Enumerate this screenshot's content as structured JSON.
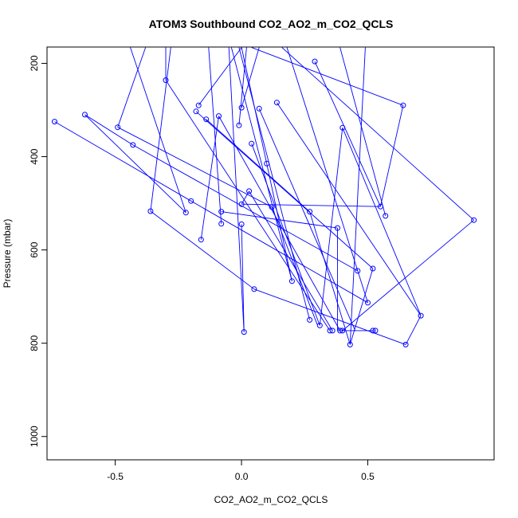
{
  "chart_data": {
    "type": "line",
    "title": "ATOM3 Southbound CO2_AO2_m_CO2_QCLS",
    "xlabel": "CO2_AO2_m_CO2_QCLS",
    "ylabel": "Pressure (mbar)",
    "xlim": [
      -0.77,
      1.0
    ],
    "ylim": [
      1050,
      165
    ],
    "y_reversed": true,
    "x_ticks": [
      -0.5,
      0.0,
      0.5
    ],
    "x_tick_labels": [
      "-0.5",
      "0.0",
      "0.5"
    ],
    "y_ticks": [
      200,
      400,
      600,
      800,
      1000
    ],
    "y_tick_labels": [
      "200",
      "400",
      "600",
      "800",
      "1000"
    ],
    "series_color": "#0000ff",
    "marker": "open-circle",
    "visible_markers": [
      {
        "x": -0.74,
        "y": 325
      },
      {
        "x": -0.62,
        "y": 310
      },
      {
        "x": -0.49,
        "y": 337
      },
      {
        "x": -0.43,
        "y": 375
      },
      {
        "x": -0.36,
        "y": 517
      },
      {
        "x": -0.3,
        "y": 236
      },
      {
        "x": -0.22,
        "y": 520
      },
      {
        "x": -0.2,
        "y": 495
      },
      {
        "x": -0.18,
        "y": 303
      },
      {
        "x": -0.17,
        "y": 290
      },
      {
        "x": -0.16,
        "y": 578
      },
      {
        "x": -0.14,
        "y": 320
      },
      {
        "x": -0.09,
        "y": 313
      },
      {
        "x": -0.08,
        "y": 544
      },
      {
        "x": -0.08,
        "y": 518
      },
      {
        "x": -0.01,
        "y": 333
      },
      {
        "x": 0.0,
        "y": 295
      },
      {
        "x": 0.0,
        "y": 545
      },
      {
        "x": 0.0,
        "y": 502
      },
      {
        "x": 0.01,
        "y": 776
      },
      {
        "x": 0.03,
        "y": 474
      },
      {
        "x": 0.04,
        "y": 372
      },
      {
        "x": 0.05,
        "y": 684
      },
      {
        "x": 0.07,
        "y": 297
      },
      {
        "x": 0.1,
        "y": 415
      },
      {
        "x": 0.12,
        "y": 508
      },
      {
        "x": 0.14,
        "y": 284
      },
      {
        "x": 0.2,
        "y": 667
      },
      {
        "x": 0.27,
        "y": 750
      },
      {
        "x": 0.27,
        "y": 518
      },
      {
        "x": 0.29,
        "y": 196
      },
      {
        "x": 0.31,
        "y": 762
      },
      {
        "x": 0.35,
        "y": 773
      },
      {
        "x": 0.36,
        "y": 773
      },
      {
        "x": 0.38,
        "y": 553
      },
      {
        "x": 0.39,
        "y": 773
      },
      {
        "x": 0.4,
        "y": 773
      },
      {
        "x": 0.4,
        "y": 338
      },
      {
        "x": 0.43,
        "y": 803
      },
      {
        "x": 0.46,
        "y": 645
      },
      {
        "x": 0.5,
        "y": 713
      },
      {
        "x": 0.52,
        "y": 773
      },
      {
        "x": 0.53,
        "y": 773
      },
      {
        "x": 0.52,
        "y": 640
      },
      {
        "x": 0.55,
        "y": 507
      },
      {
        "x": 0.57,
        "y": 527
      },
      {
        "x": 0.64,
        "y": 290
      },
      {
        "x": 0.65,
        "y": 803
      },
      {
        "x": 0.71,
        "y": 741
      },
      {
        "x": 0.92,
        "y": 536
      }
    ],
    "segments": [
      [
        {
          "x": -0.74,
          "y": 325
        },
        {
          "x": -0.2,
          "y": 495
        }
      ],
      [
        {
          "x": -0.62,
          "y": 310
        },
        {
          "x": -0.43,
          "y": 375
        }
      ],
      [
        {
          "x": -0.43,
          "y": 375
        },
        {
          "x": 0.46,
          "y": 645
        }
      ],
      [
        {
          "x": -0.62,
          "y": 310
        },
        {
          "x": -0.22,
          "y": 520
        }
      ],
      [
        {
          "x": -0.49,
          "y": 337
        },
        {
          "x": 0.12,
          "y": 508
        }
      ],
      [
        {
          "x": -0.49,
          "y": 337
        },
        {
          "x": -0.38,
          "y": 166
        }
      ],
      [
        {
          "x": -0.36,
          "y": 517
        },
        {
          "x": -0.28,
          "y": 166
        }
      ],
      [
        {
          "x": -0.36,
          "y": 517
        },
        {
          "x": 0.05,
          "y": 684
        }
      ],
      [
        {
          "x": 0.05,
          "y": 684
        },
        {
          "x": 0.65,
          "y": 803
        }
      ],
      [
        {
          "x": 0.65,
          "y": 803
        },
        {
          "x": 0.71,
          "y": 741
        }
      ],
      [
        {
          "x": 0.71,
          "y": 741
        },
        {
          "x": 0.4,
          "y": 338
        }
      ],
      [
        {
          "x": -0.3,
          "y": 236
        },
        {
          "x": -0.3,
          "y": 166
        }
      ],
      [
        {
          "x": -0.3,
          "y": 236
        },
        {
          "x": 0.35,
          "y": 773
        }
      ],
      [
        {
          "x": -0.22,
          "y": 520
        },
        {
          "x": -0.44,
          "y": 166
        }
      ],
      [
        {
          "x": -0.2,
          "y": 495
        },
        {
          "x": 0.5,
          "y": 713
        }
      ],
      [
        {
          "x": -0.18,
          "y": 303
        },
        {
          "x": 0.52,
          "y": 640
        }
      ],
      [
        {
          "x": -0.17,
          "y": 290
        },
        {
          "x": 0.0,
          "y": 166
        }
      ],
      [
        {
          "x": -0.16,
          "y": 578
        },
        {
          "x": -0.09,
          "y": 313
        }
      ],
      [
        {
          "x": -0.14,
          "y": 320
        },
        {
          "x": 0.27,
          "y": 518
        }
      ],
      [
        {
          "x": -0.09,
          "y": 313
        },
        {
          "x": 0.39,
          "y": 773
        }
      ],
      [
        {
          "x": -0.08,
          "y": 544
        },
        {
          "x": -0.13,
          "y": 166
        }
      ],
      [
        {
          "x": -0.08,
          "y": 518
        },
        {
          "x": 0.38,
          "y": 553
        }
      ],
      [
        {
          "x": -0.01,
          "y": 333
        },
        {
          "x": 0.02,
          "y": 166
        }
      ],
      [
        {
          "x": 0.0,
          "y": 295
        },
        {
          "x": 0.07,
          "y": 166
        }
      ],
      [
        {
          "x": 0.0,
          "y": 545
        },
        {
          "x": 0.01,
          "y": 776
        }
      ],
      [
        {
          "x": 0.01,
          "y": 776
        },
        {
          "x": -0.05,
          "y": 166
        }
      ],
      [
        {
          "x": 0.0,
          "y": 502
        },
        {
          "x": 0.03,
          "y": 474
        }
      ],
      [
        {
          "x": 0.03,
          "y": 474
        },
        {
          "x": 0.36,
          "y": 773
        }
      ],
      [
        {
          "x": 0.04,
          "y": 372
        },
        {
          "x": 0.31,
          "y": 762
        }
      ],
      [
        {
          "x": 0.07,
          "y": 297
        },
        {
          "x": 0.45,
          "y": 773
        }
      ],
      [
        {
          "x": 0.1,
          "y": 415
        },
        {
          "x": 0.2,
          "y": 667
        }
      ],
      [
        {
          "x": 0.1,
          "y": 415
        },
        {
          "x": 0.0,
          "y": 166
        }
      ],
      [
        {
          "x": 0.12,
          "y": 508
        },
        {
          "x": 0.3,
          "y": 760
        }
      ],
      [
        {
          "x": 0.14,
          "y": 284
        },
        {
          "x": 0.71,
          "y": 741
        }
      ],
      [
        {
          "x": 0.2,
          "y": 667
        },
        {
          "x": -0.04,
          "y": 166
        }
      ],
      [
        {
          "x": 0.27,
          "y": 750
        },
        {
          "x": -0.01,
          "y": 166
        }
      ],
      [
        {
          "x": 0.27,
          "y": 518
        },
        {
          "x": 0.43,
          "y": 803
        }
      ],
      [
        {
          "x": 0.29,
          "y": 196
        },
        {
          "x": 0.55,
          "y": 507
        }
      ],
      [
        {
          "x": 0.31,
          "y": 762
        },
        {
          "x": 0.4,
          "y": 338
        }
      ],
      [
        {
          "x": 0.38,
          "y": 553
        },
        {
          "x": 0.38,
          "y": 773
        }
      ],
      [
        {
          "x": 0.38,
          "y": 773
        },
        {
          "x": 0.53,
          "y": 773
        }
      ],
      [
        {
          "x": 0.43,
          "y": 803
        },
        {
          "x": 0.49,
          "y": 166
        }
      ],
      [
        {
          "x": 0.43,
          "y": 803
        },
        {
          "x": 0.52,
          "y": 640
        }
      ],
      [
        {
          "x": 0.5,
          "y": 713
        },
        {
          "x": 0.18,
          "y": 166
        }
      ],
      [
        {
          "x": 0.55,
          "y": 507
        },
        {
          "x": 0.0,
          "y": 502
        }
      ],
      [
        {
          "x": 0.55,
          "y": 507
        },
        {
          "x": 0.64,
          "y": 290
        }
      ],
      [
        {
          "x": 0.57,
          "y": 527
        },
        {
          "x": 0.39,
          "y": 166
        }
      ],
      [
        {
          "x": 0.64,
          "y": 290
        },
        {
          "x": 0.04,
          "y": 166
        }
      ],
      [
        {
          "x": 0.92,
          "y": 536
        },
        {
          "x": 0.16,
          "y": 166
        }
      ],
      [
        {
          "x": 0.92,
          "y": 536
        },
        {
          "x": 0.4,
          "y": 773
        }
      ]
    ]
  }
}
